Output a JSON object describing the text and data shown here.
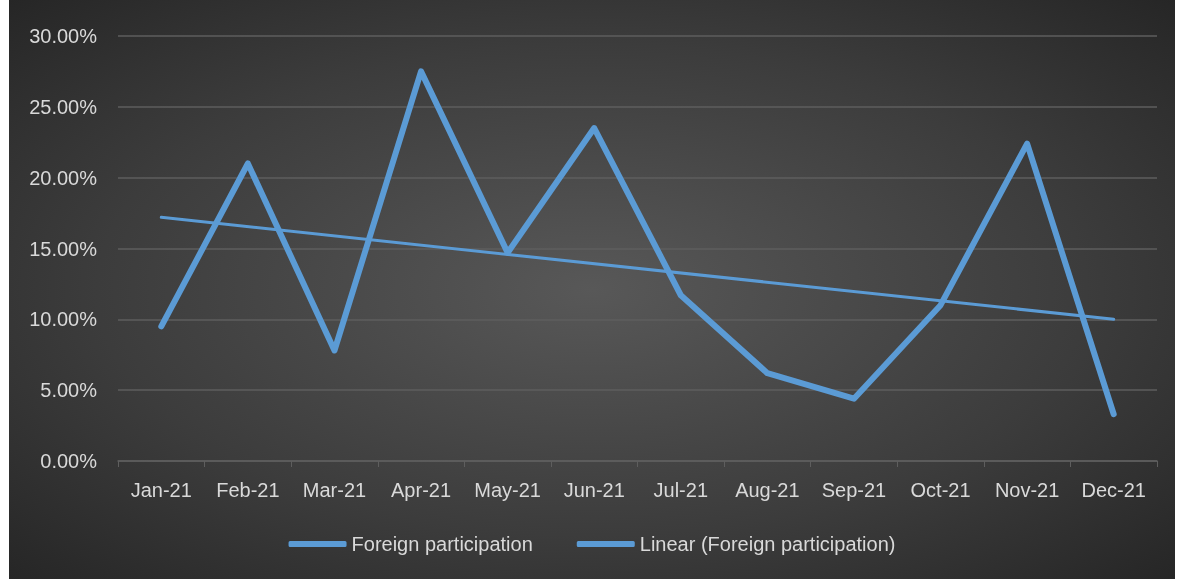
{
  "chart_data": {
    "type": "line",
    "categories": [
      "Jan-21",
      "Feb-21",
      "Mar-21",
      "Apr-21",
      "May-21",
      "Jun-21",
      "Jul-21",
      "Aug-21",
      "Sep-21",
      "Oct-21",
      "Nov-21",
      "Dec-21"
    ],
    "series": [
      {
        "name": "Foreign participation",
        "color": "#5b9bd5",
        "values": [
          9.5,
          21.0,
          7.8,
          27.5,
          14.7,
          23.5,
          11.7,
          6.2,
          4.4,
          11.0,
          22.4,
          3.3
        ]
      },
      {
        "name": "Linear (Foreign participation)",
        "type": "line",
        "color": "#5b9bd5",
        "x": [
          "Jan-21",
          "Dec-21"
        ],
        "values": [
          17.2,
          10.0
        ]
      }
    ],
    "ylim": [
      0,
      30
    ],
    "yticks": [
      {
        "value": 0,
        "label": "0.00%"
      },
      {
        "value": 5,
        "label": "5.00%"
      },
      {
        "value": 10,
        "label": "10.00%"
      },
      {
        "value": 15,
        "label": "15.00%"
      },
      {
        "value": 20,
        "label": "20.00%"
      },
      {
        "value": 25,
        "label": "25.00%"
      },
      {
        "value": 30,
        "label": "30.00%"
      }
    ],
    "grid": "y",
    "legend": "bottom"
  }
}
